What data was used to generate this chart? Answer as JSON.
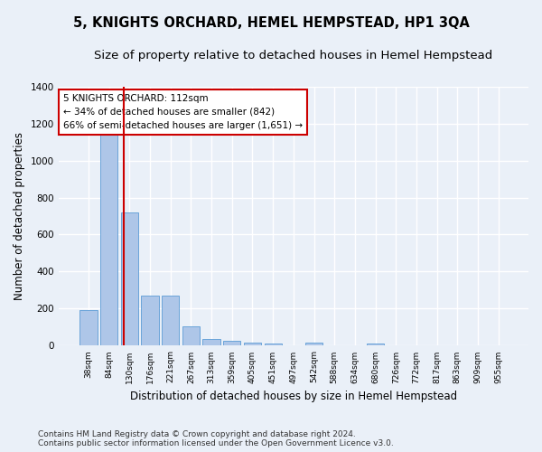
{
  "title": "5, KNIGHTS ORCHARD, HEMEL HEMPSTEAD, HP1 3QA",
  "subtitle": "Size of property relative to detached houses in Hemel Hempstead",
  "xlabel": "Distribution of detached houses by size in Hemel Hempstead",
  "ylabel": "Number of detached properties",
  "bins": [
    "38sqm",
    "84sqm",
    "130sqm",
    "176sqm",
    "221sqm",
    "267sqm",
    "313sqm",
    "359sqm",
    "405sqm",
    "451sqm",
    "497sqm",
    "542sqm",
    "588sqm",
    "634sqm",
    "680sqm",
    "726sqm",
    "772sqm",
    "817sqm",
    "863sqm",
    "909sqm",
    "955sqm"
  ],
  "bar_heights": [
    190,
    1150,
    720,
    270,
    270,
    105,
    35,
    28,
    15,
    13,
    0,
    18,
    0,
    0,
    14,
    0,
    0,
    0,
    0,
    0,
    0
  ],
  "bar_color": "#aec6e8",
  "bar_edge_color": "#5b9bd5",
  "vline_x": 1.74,
  "vline_color": "#cc0000",
  "annotation_text": "5 KNIGHTS ORCHARD: 112sqm\n← 34% of detached houses are smaller (842)\n66% of semi-detached houses are larger (1,651) →",
  "annotation_box_color": "#ffffff",
  "annotation_box_edge_color": "#cc0000",
  "ylim": [
    0,
    1400
  ],
  "yticks": [
    0,
    200,
    400,
    600,
    800,
    1000,
    1200,
    1400
  ],
  "background_color": "#eaf0f8",
  "plot_bg_color": "#eaf0f8",
  "grid_color": "#ffffff",
  "footer": "Contains HM Land Registry data © Crown copyright and database right 2024.\nContains public sector information licensed under the Open Government Licence v3.0.",
  "title_fontsize": 10.5,
  "subtitle_fontsize": 9.5,
  "xlabel_fontsize": 8.5,
  "ylabel_fontsize": 8.5,
  "footer_fontsize": 6.5,
  "annot_fontsize": 7.5
}
